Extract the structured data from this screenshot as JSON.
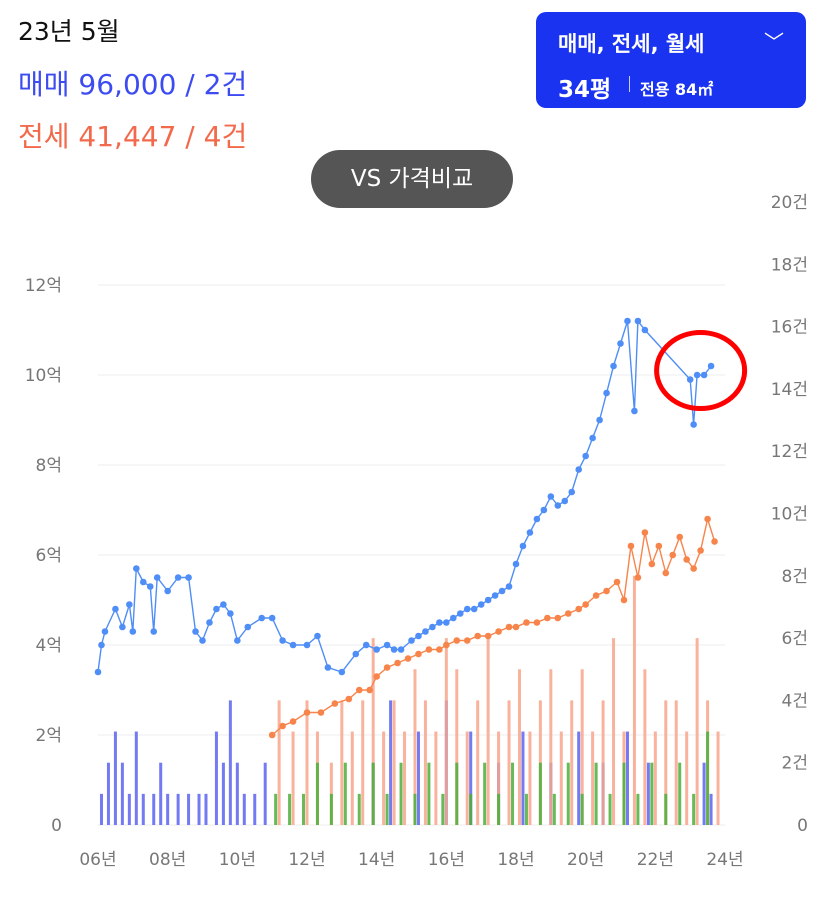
{
  "header": {
    "date": "23년 5월",
    "sale_summary": "매매 96,000 / 2건",
    "jeonse_summary": "전세 41,447 / 4건"
  },
  "filter_button": {
    "trade_types": "매매, 전세, 월세",
    "chevron_icon": "chevron-down-icon",
    "size_pyeong": "34평",
    "size_exclusive": "전용 84㎡"
  },
  "compare_button": {
    "label": "VS 가격비교"
  },
  "chart_data": {
    "type": "line",
    "x_ticks": [
      "06년",
      "08년",
      "10년",
      "12년",
      "14년",
      "16년",
      "18년",
      "20년",
      "22년",
      "24년"
    ],
    "y_left_ticks": [
      "0",
      "2억",
      "4억",
      "6억",
      "8억",
      "10억",
      "12억"
    ],
    "y_right_ticks": [
      "0",
      "2건",
      "4건",
      "6건",
      "8건",
      "10건",
      "12건",
      "14건",
      "16건",
      "18건",
      "20건"
    ],
    "xlim": [
      2006,
      2024
    ],
    "ylim_left": [
      0,
      13
    ],
    "ylim_right": [
      0,
      20
    ],
    "colors": {
      "sale": "#4f8ef7",
      "jeonse": "#f7844a",
      "sale_vol": "#5b63f0",
      "jeonse_vol": "#f8a58a",
      "wolse_vol": "#4caf3a",
      "annotation": "#ff0000"
    },
    "series": [
      {
        "key": "sale",
        "points": [
          [
            2006.0,
            3.4
          ],
          [
            2006.1,
            4.0
          ],
          [
            2006.2,
            4.3
          ],
          [
            2006.5,
            4.8
          ],
          [
            2006.7,
            4.4
          ],
          [
            2006.9,
            4.9
          ],
          [
            2007.0,
            4.3
          ],
          [
            2007.1,
            5.7
          ],
          [
            2007.3,
            5.4
          ],
          [
            2007.5,
            5.3
          ],
          [
            2007.6,
            4.3
          ],
          [
            2007.7,
            5.5
          ],
          [
            2008.0,
            5.2
          ],
          [
            2008.3,
            5.5
          ],
          [
            2008.6,
            5.5
          ],
          [
            2008.8,
            4.3
          ],
          [
            2009.0,
            4.1
          ],
          [
            2009.2,
            4.5
          ],
          [
            2009.4,
            4.8
          ],
          [
            2009.6,
            4.9
          ],
          [
            2009.8,
            4.7
          ],
          [
            2010.0,
            4.1
          ],
          [
            2010.3,
            4.4
          ],
          [
            2010.7,
            4.6
          ],
          [
            2011.0,
            4.6
          ],
          [
            2011.3,
            4.1
          ],
          [
            2011.6,
            4.0
          ],
          [
            2012.0,
            4.0
          ],
          [
            2012.3,
            4.2
          ],
          [
            2012.6,
            3.5
          ],
          [
            2013.0,
            3.4
          ],
          [
            2013.4,
            3.8
          ],
          [
            2013.7,
            4.0
          ],
          [
            2014.0,
            3.9
          ],
          [
            2014.3,
            4.0
          ],
          [
            2014.5,
            3.9
          ],
          [
            2014.7,
            3.9
          ],
          [
            2015.0,
            4.1
          ],
          [
            2015.2,
            4.2
          ],
          [
            2015.4,
            4.3
          ],
          [
            2015.6,
            4.4
          ],
          [
            2015.8,
            4.5
          ],
          [
            2016.0,
            4.5
          ],
          [
            2016.2,
            4.6
          ],
          [
            2016.4,
            4.7
          ],
          [
            2016.6,
            4.8
          ],
          [
            2016.8,
            4.8
          ],
          [
            2017.0,
            4.9
          ],
          [
            2017.2,
            5.0
          ],
          [
            2017.4,
            5.1
          ],
          [
            2017.6,
            5.2
          ],
          [
            2017.8,
            5.3
          ],
          [
            2018.0,
            5.8
          ],
          [
            2018.2,
            6.2
          ],
          [
            2018.4,
            6.5
          ],
          [
            2018.6,
            6.8
          ],
          [
            2018.8,
            7.0
          ],
          [
            2019.0,
            7.3
          ],
          [
            2019.2,
            7.1
          ],
          [
            2019.4,
            7.2
          ],
          [
            2019.6,
            7.4
          ],
          [
            2019.8,
            7.9
          ],
          [
            2020.0,
            8.2
          ],
          [
            2020.2,
            8.6
          ],
          [
            2020.4,
            9.0
          ],
          [
            2020.6,
            9.6
          ],
          [
            2020.8,
            10.2
          ],
          [
            2021.0,
            10.7
          ],
          [
            2021.2,
            11.2
          ],
          [
            2021.4,
            9.2
          ],
          [
            2021.5,
            11.2
          ],
          [
            2021.7,
            11.0
          ],
          [
            2023.0,
            9.9
          ],
          [
            2023.1,
            8.9
          ],
          [
            2023.2,
            10.0
          ],
          [
            2023.4,
            10.0
          ],
          [
            2023.6,
            10.2
          ]
        ]
      },
      {
        "key": "jeonse",
        "points": [
          [
            2011.0,
            2.0
          ],
          [
            2011.3,
            2.2
          ],
          [
            2011.6,
            2.3
          ],
          [
            2012.0,
            2.5
          ],
          [
            2012.4,
            2.5
          ],
          [
            2012.8,
            2.7
          ],
          [
            2013.2,
            2.8
          ],
          [
            2013.5,
            3.0
          ],
          [
            2013.8,
            3.0
          ],
          [
            2014.0,
            3.3
          ],
          [
            2014.3,
            3.5
          ],
          [
            2014.6,
            3.6
          ],
          [
            2014.9,
            3.7
          ],
          [
            2015.2,
            3.8
          ],
          [
            2015.5,
            3.9
          ],
          [
            2015.8,
            3.9
          ],
          [
            2016.0,
            4.0
          ],
          [
            2016.3,
            4.1
          ],
          [
            2016.6,
            4.1
          ],
          [
            2016.9,
            4.2
          ],
          [
            2017.2,
            4.2
          ],
          [
            2017.5,
            4.3
          ],
          [
            2017.8,
            4.4
          ],
          [
            2018.0,
            4.4
          ],
          [
            2018.3,
            4.5
          ],
          [
            2018.6,
            4.5
          ],
          [
            2018.9,
            4.6
          ],
          [
            2019.2,
            4.6
          ],
          [
            2019.5,
            4.7
          ],
          [
            2019.8,
            4.8
          ],
          [
            2020.0,
            4.9
          ],
          [
            2020.3,
            5.1
          ],
          [
            2020.6,
            5.2
          ],
          [
            2020.9,
            5.4
          ],
          [
            2021.1,
            5.0
          ],
          [
            2021.3,
            6.2
          ],
          [
            2021.5,
            5.5
          ],
          [
            2021.7,
            6.5
          ],
          [
            2021.9,
            5.8
          ],
          [
            2022.1,
            6.2
          ],
          [
            2022.3,
            5.6
          ],
          [
            2022.5,
            6.0
          ],
          [
            2022.7,
            6.4
          ],
          [
            2022.9,
            5.9
          ],
          [
            2023.1,
            5.7
          ],
          [
            2023.3,
            6.1
          ],
          [
            2023.5,
            6.8
          ],
          [
            2023.7,
            6.3
          ]
        ]
      }
    ],
    "volume_series": [
      {
        "key": "sale_vol",
        "bars": [
          [
            2006.1,
            1
          ],
          [
            2006.3,
            2
          ],
          [
            2006.5,
            3
          ],
          [
            2006.7,
            2
          ],
          [
            2006.9,
            1
          ],
          [
            2007.1,
            3
          ],
          [
            2007.3,
            1
          ],
          [
            2007.6,
            1
          ],
          [
            2007.8,
            2
          ],
          [
            2008.0,
            1
          ],
          [
            2008.3,
            1
          ],
          [
            2008.6,
            1
          ],
          [
            2008.9,
            1
          ],
          [
            2009.1,
            1
          ],
          [
            2009.4,
            3
          ],
          [
            2009.6,
            2
          ],
          [
            2009.8,
            4
          ],
          [
            2010.0,
            2
          ],
          [
            2010.2,
            1
          ],
          [
            2010.5,
            1
          ],
          [
            2010.8,
            2
          ],
          [
            2013.9,
            2
          ],
          [
            2014.4,
            4
          ],
          [
            2015.2,
            3
          ],
          [
            2016.0,
            4
          ],
          [
            2016.7,
            3
          ],
          [
            2017.5,
            2
          ],
          [
            2018.2,
            3
          ],
          [
            2019.0,
            2
          ],
          [
            2019.8,
            3
          ],
          [
            2020.5,
            2
          ],
          [
            2021.2,
            3
          ],
          [
            2021.8,
            2
          ],
          [
            2023.4,
            2
          ],
          [
            2023.6,
            1
          ]
        ]
      },
      {
        "key": "jeonse_vol",
        "bars": [
          [
            2011.2,
            4
          ],
          [
            2011.6,
            3
          ],
          [
            2012.0,
            4
          ],
          [
            2012.3,
            3
          ],
          [
            2012.7,
            2
          ],
          [
            2013.0,
            4
          ],
          [
            2013.3,
            3
          ],
          [
            2013.6,
            4
          ],
          [
            2013.9,
            6
          ],
          [
            2014.2,
            3
          ],
          [
            2014.5,
            4
          ],
          [
            2014.8,
            3
          ],
          [
            2015.1,
            5
          ],
          [
            2015.4,
            4
          ],
          [
            2015.7,
            3
          ],
          [
            2016.0,
            6
          ],
          [
            2016.3,
            5
          ],
          [
            2016.6,
            3
          ],
          [
            2016.9,
            4
          ],
          [
            2017.2,
            6
          ],
          [
            2017.5,
            3
          ],
          [
            2017.8,
            4
          ],
          [
            2018.1,
            5
          ],
          [
            2018.4,
            3
          ],
          [
            2018.7,
            4
          ],
          [
            2019.0,
            5
          ],
          [
            2019.3,
            3
          ],
          [
            2019.6,
            4
          ],
          [
            2019.9,
            5
          ],
          [
            2020.2,
            3
          ],
          [
            2020.5,
            4
          ],
          [
            2020.8,
            6
          ],
          [
            2021.1,
            3
          ],
          [
            2021.4,
            8
          ],
          [
            2021.7,
            5
          ],
          [
            2022.0,
            3
          ],
          [
            2022.3,
            4
          ],
          [
            2022.6,
            4
          ],
          [
            2022.9,
            3
          ],
          [
            2023.2,
            6
          ],
          [
            2023.5,
            4
          ],
          [
            2023.8,
            3
          ]
        ]
      },
      {
        "key": "wolse_vol",
        "bars": [
          [
            2011.1,
            1
          ],
          [
            2011.5,
            1
          ],
          [
            2011.9,
            1
          ],
          [
            2012.3,
            2
          ],
          [
            2012.7,
            1
          ],
          [
            2013.1,
            2
          ],
          [
            2013.5,
            1
          ],
          [
            2013.9,
            2
          ],
          [
            2014.3,
            1
          ],
          [
            2014.7,
            2
          ],
          [
            2015.1,
            1
          ],
          [
            2015.5,
            2
          ],
          [
            2015.9,
            1
          ],
          [
            2016.3,
            2
          ],
          [
            2016.7,
            1
          ],
          [
            2017.1,
            2
          ],
          [
            2017.5,
            1
          ],
          [
            2017.9,
            2
          ],
          [
            2018.3,
            1
          ],
          [
            2018.7,
            2
          ],
          [
            2019.1,
            1
          ],
          [
            2019.5,
            2
          ],
          [
            2019.9,
            1
          ],
          [
            2020.3,
            2
          ],
          [
            2020.7,
            1
          ],
          [
            2021.1,
            2
          ],
          [
            2021.5,
            1
          ],
          [
            2021.9,
            2
          ],
          [
            2022.3,
            1
          ],
          [
            2022.7,
            2
          ],
          [
            2023.1,
            1
          ],
          [
            2023.5,
            3
          ]
        ]
      }
    ],
    "annotation": {
      "shape": "circle",
      "x": 2023.3,
      "y": 10.1
    }
  }
}
